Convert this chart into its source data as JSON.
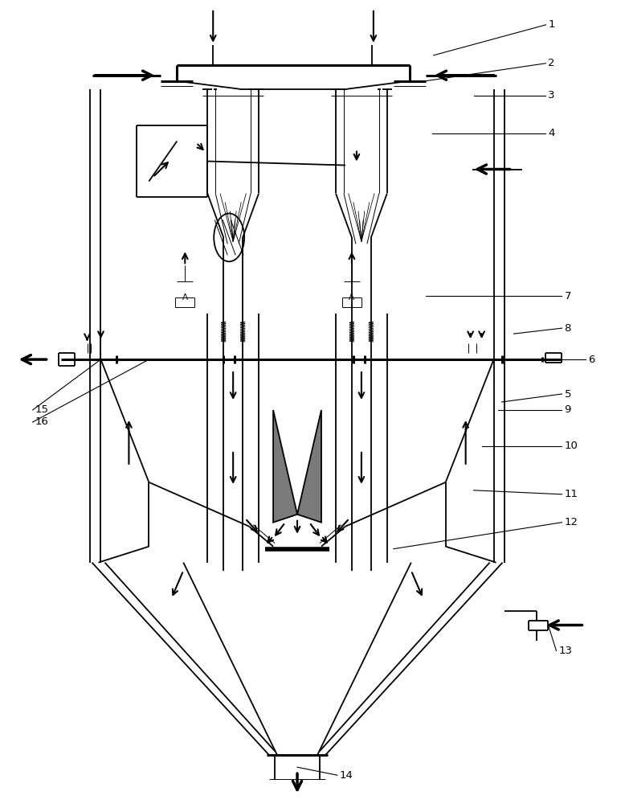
{
  "fig_width": 7.78,
  "fig_height": 10.0,
  "dpi": 100,
  "line_color": "#000000",
  "bg_color": "#ffffff",
  "gray_fill": "#7a7a7a",
  "lw": 1.3,
  "lw2": 2.2,
  "lw1": 0.7,
  "lw3": 3.0
}
